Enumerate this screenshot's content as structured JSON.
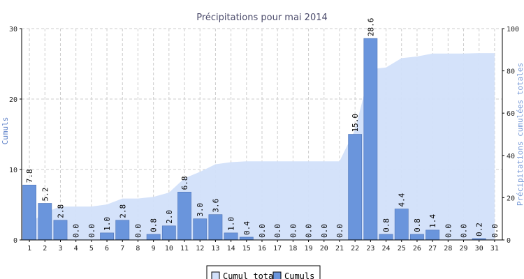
{
  "chart_data": {
    "type": "bar",
    "title": "Précipitations pour mai 2014",
    "ylabel_left": "Cumuls",
    "ylabel_right": "Précipitations cumulées totales",
    "ylim_left": [
      0,
      30
    ],
    "ylim_right": [
      0,
      100
    ],
    "yticks_left": [
      "0",
      "10",
      "20",
      "30"
    ],
    "yticks_right": [
      "0",
      "20",
      "40",
      "60",
      "80",
      "100"
    ],
    "grid": true,
    "legend_position": "bottom-center",
    "categories": [
      "1",
      "2",
      "3",
      "4",
      "5",
      "6",
      "7",
      "8",
      "9",
      "10",
      "11",
      "12",
      "13",
      "14",
      "15",
      "16",
      "17",
      "18",
      "19",
      "20",
      "21",
      "22",
      "23",
      "24",
      "25",
      "26",
      "27",
      "28",
      "29",
      "30",
      "31"
    ],
    "series": [
      {
        "name": "Cumuls",
        "type": "bar",
        "axis": "left",
        "color": "#6a95dc",
        "values": [
          7.8,
          5.2,
          2.8,
          0.0,
          0.0,
          1.0,
          2.8,
          0.0,
          0.8,
          2.0,
          6.8,
          3.0,
          3.6,
          1.0,
          0.4,
          0.0,
          0.0,
          0.0,
          0.0,
          0.0,
          0.0,
          15.0,
          28.6,
          0.8,
          4.4,
          0.8,
          1.4,
          0.0,
          0.0,
          0.2,
          0.0
        ],
        "labels": [
          "7.8",
          "5.2",
          "2.8",
          "0.0",
          "0.0",
          "1.0",
          "2.8",
          "0.0",
          "0.8",
          "2.0",
          "6.8",
          "3.0",
          "3.6",
          "1.0",
          "0.4",
          "0.0",
          "0.0",
          "0.0",
          "0.0",
          "0.0",
          "0.0",
          "15.0",
          "28.6",
          "0.8",
          "4.4",
          "0.8",
          "1.4",
          "0.0",
          "0.0",
          "0.2",
          "0.0"
        ]
      },
      {
        "name": "Cumul total",
        "type": "area",
        "axis": "right",
        "color": "#d2e0fa",
        "values": [
          7.8,
          13.0,
          15.8,
          15.8,
          15.8,
          16.8,
          19.6,
          19.6,
          20.4,
          22.4,
          29.2,
          32.2,
          35.8,
          36.8,
          37.2,
          37.2,
          37.2,
          37.2,
          37.2,
          37.2,
          37.2,
          52.2,
          80.8,
          81.6,
          86.0,
          86.8,
          88.2,
          88.2,
          88.2,
          88.4,
          88.4
        ]
      }
    ],
    "legend": [
      "Cumul total",
      "Cumuls"
    ]
  },
  "colors": {
    "bar_fill": "#6a95dc",
    "bar_stroke": "#4f74b8",
    "area_fill": "#d2e0fa",
    "axis_left_label": "#5b7fc7",
    "axis_right_label": "#7a9bd8",
    "grid": "#cccccc"
  }
}
